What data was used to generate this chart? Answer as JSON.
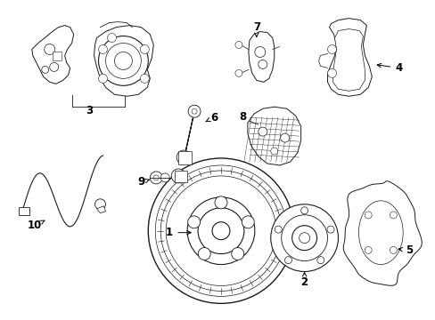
{
  "bg": "#ffffff",
  "lc": "#1a1a1a",
  "lw": 0.7,
  "fig_w": 4.89,
  "fig_h": 3.6,
  "dpi": 100
}
